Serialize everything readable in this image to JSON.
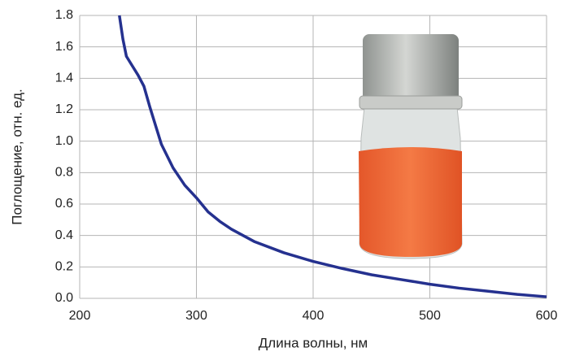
{
  "chart_data": {
    "type": "line",
    "x_label": "Длина волны, нм",
    "y_label": "Поглощение, отн. ед.",
    "x": [
      234,
      237,
      240,
      245,
      250,
      255,
      260,
      265,
      270,
      280,
      290,
      300,
      310,
      320,
      330,
      340,
      350,
      375,
      400,
      425,
      450,
      475,
      500,
      525,
      550,
      575,
      600
    ],
    "series": [
      {
        "color": "#25318f",
        "values": [
          1.8,
          1.65,
          1.54,
          1.48,
          1.42,
          1.35,
          1.22,
          1.1,
          0.98,
          0.83,
          0.72,
          0.64,
          0.55,
          0.49,
          0.44,
          0.4,
          0.36,
          0.29,
          0.235,
          0.19,
          0.15,
          0.12,
          0.09,
          0.065,
          0.045,
          0.025,
          0.01
        ]
      }
    ],
    "xlim": [
      200,
      600
    ],
    "xticks": [
      200,
      300,
      400,
      500,
      600
    ],
    "ylim": [
      0,
      1.8
    ],
    "yticks": [
      {
        "value": 0,
        "label": "0.0"
      },
      0.2,
      0.4,
      0.6,
      0.8,
      {
        "value": 1,
        "label": "1.0"
      },
      1.2,
      1.4,
      1.6,
      1.8
    ],
    "grid": true
  }
}
